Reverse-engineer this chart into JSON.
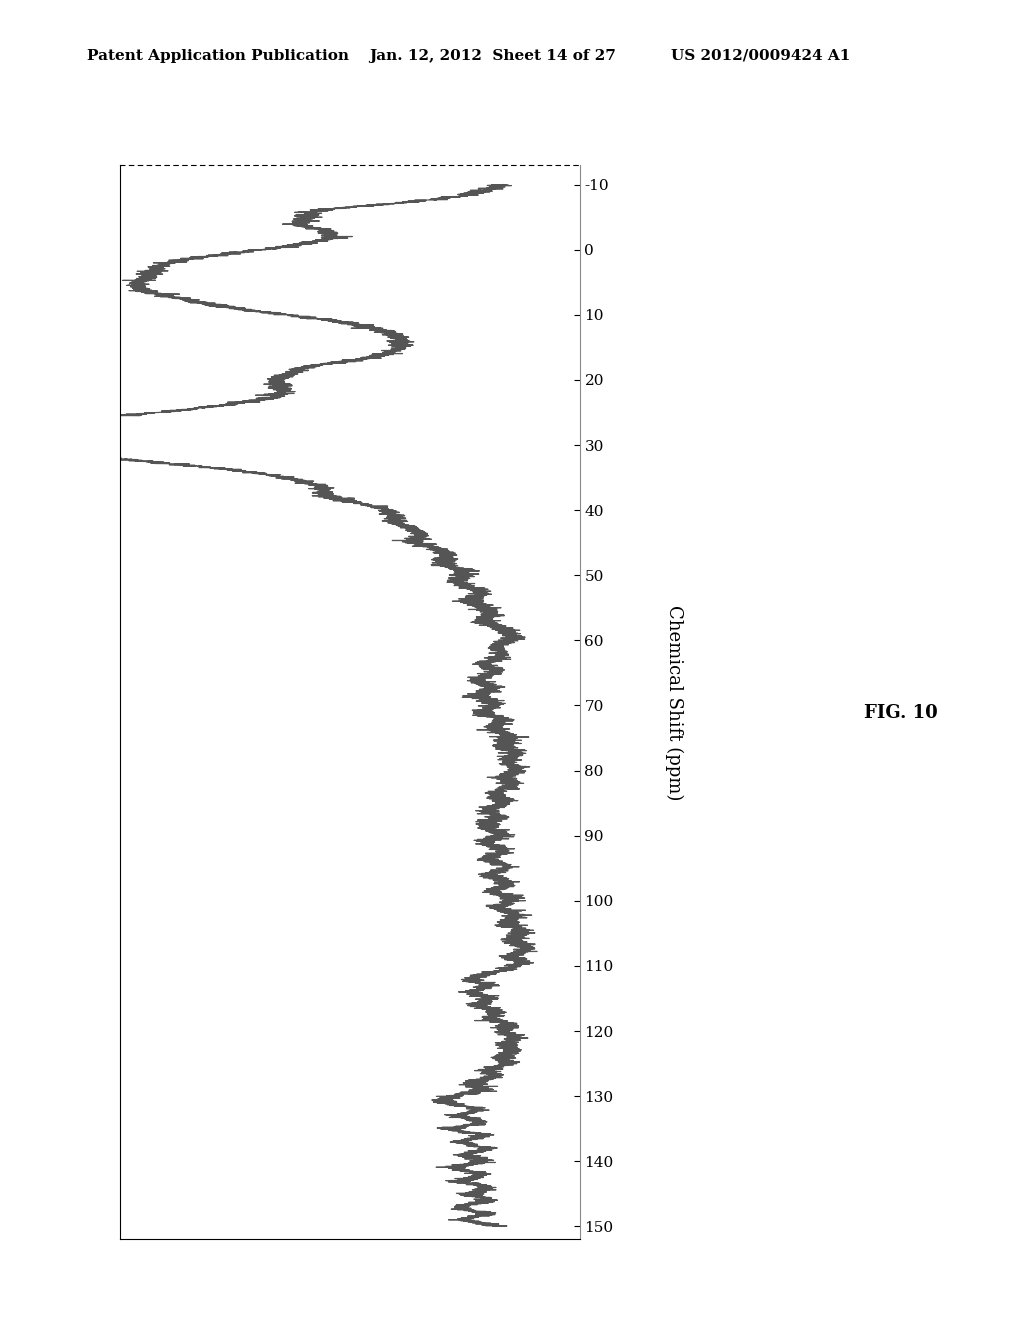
{
  "header_left": "Patent Application Publication",
  "header_center": "Jan. 12, 2012  Sheet 14 of 27",
  "header_right": "US 2012/0009424 A1",
  "figure_label": "FIG. 10",
  "axis_label": "Chemical Shift (ppm)",
  "y_ticks": [
    -10,
    0,
    10,
    20,
    30,
    40,
    50,
    60,
    70,
    80,
    90,
    100,
    110,
    120,
    130,
    140,
    150
  ],
  "line_color": "#555555",
  "line_width": 0.85,
  "background_color": "#ffffff",
  "header_fontsize": 11,
  "tick_fontsize": 11,
  "axislabel_fontsize": 13,
  "figlabel_fontsize": 13,
  "noise_seed": 77
}
